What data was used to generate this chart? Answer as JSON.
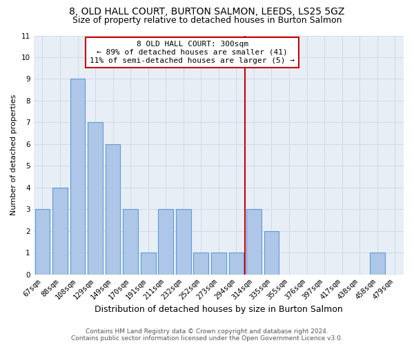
{
  "title": "8, OLD HALL COURT, BURTON SALMON, LEEDS, LS25 5GZ",
  "subtitle": "Size of property relative to detached houses in Burton Salmon",
  "xlabel": "Distribution of detached houses by size in Burton Salmon",
  "ylabel": "Number of detached properties",
  "categories": [
    "67sqm",
    "88sqm",
    "108sqm",
    "129sqm",
    "149sqm",
    "170sqm",
    "191sqm",
    "211sqm",
    "232sqm",
    "252sqm",
    "273sqm",
    "294sqm",
    "314sqm",
    "335sqm",
    "355sqm",
    "376sqm",
    "397sqm",
    "417sqm",
    "438sqm",
    "458sqm",
    "479sqm"
  ],
  "values": [
    3,
    4,
    9,
    7,
    6,
    3,
    1,
    3,
    3,
    1,
    1,
    1,
    3,
    2,
    0,
    0,
    0,
    0,
    0,
    1,
    0
  ],
  "bar_color": "#aec6e8",
  "bar_edgecolor": "#5b9bd5",
  "vline_color": "#cc0000",
  "annotation_text": "8 OLD HALL COURT: 300sqm\n← 89% of detached houses are smaller (41)\n11% of semi-detached houses are larger (5) →",
  "annotation_box_edgecolor": "#cc0000",
  "ylim": [
    0,
    11
  ],
  "yticks": [
    0,
    1,
    2,
    3,
    4,
    5,
    6,
    7,
    8,
    9,
    10,
    11
  ],
  "grid_color": "#d0dcea",
  "background_color": "#e8eef6",
  "footer": "Contains HM Land Registry data © Crown copyright and database right 2024.\nContains public sector information licensed under the Open Government Licence v3.0.",
  "title_fontsize": 10,
  "subtitle_fontsize": 9,
  "xlabel_fontsize": 9,
  "ylabel_fontsize": 8,
  "tick_fontsize": 7.5,
  "annotation_fontsize": 8,
  "footer_fontsize": 6.5
}
